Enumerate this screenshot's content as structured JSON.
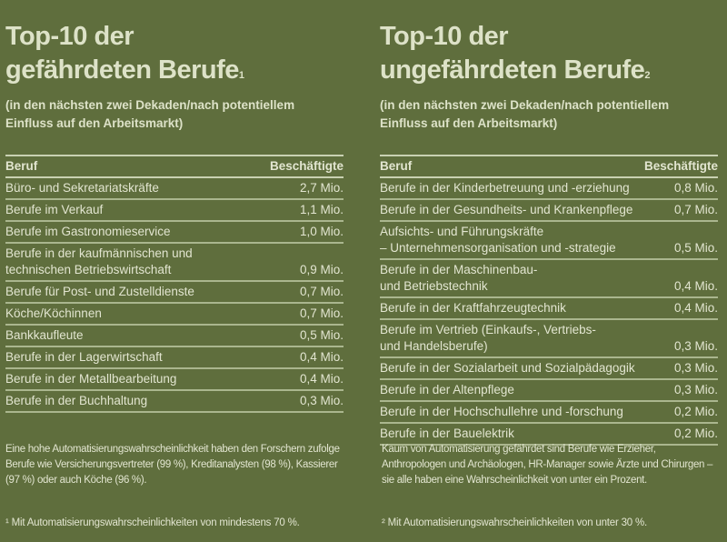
{
  "left": {
    "title_line1": "Top-10 der",
    "title_line2": "gefährdeten Berufe",
    "title_sup": "1",
    "subtitle": "(in den nächsten zwei Dekaden/nach potentiellem Einfluss auf den Arbeitsmarkt)",
    "headers": {
      "job": "Beruf",
      "count": "Beschäftigte"
    },
    "rows": [
      {
        "job": "Büro- und Sekretariatskräfte",
        "count": "2,7 Mio."
      },
      {
        "job": "Berufe im Verkauf",
        "count": "1,1 Mio."
      },
      {
        "job": "Berufe im Gastronomieservice",
        "count": "1,0 Mio."
      },
      {
        "job": "Berufe in der kaufmännischen und\ntechnischen Betriebswirtschaft",
        "count": "0,9 Mio."
      },
      {
        "job": "Berufe für Post- und Zustelldienste",
        "count": "0,7 Mio."
      },
      {
        "job": "Köche/Köchinnen",
        "count": "0,7 Mio."
      },
      {
        "job": "Bankkaufleute",
        "count": "0,5 Mio."
      },
      {
        "job": "Berufe in der Lagerwirtschaft",
        "count": "0,4 Mio."
      },
      {
        "job": "Berufe in der Metallbearbeitung",
        "count": "0,4 Mio."
      },
      {
        "job": "Berufe in der Buchhaltung",
        "count": "0,3 Mio."
      }
    ],
    "note": "Eine hohe Automatisierungswahrscheinlichkeit haben den Forschern zufolge Berufe wie Versicherungsvertreter (99 %), Kreditanalysten (98 %), Kassierer (97 %) oder auch Köche (96 %).",
    "footnote": "¹  Mit Automatisierungswahrscheinlichkeiten von mindestens 70 %."
  },
  "right": {
    "title_line1": "Top-10 der",
    "title_line2": "ungefährdeten Berufe",
    "title_sup": "2",
    "subtitle": "(in den nächsten zwei Dekaden/nach potentiellem Einfluss auf den Arbeitsmarkt)",
    "headers": {
      "job": "Beruf",
      "count": "Beschäftigte"
    },
    "rows": [
      {
        "job": "Berufe in der Kinderbetreuung und -erziehung",
        "count": "0,8 Mio."
      },
      {
        "job": "Berufe in der Gesundheits- und Krankenpflege",
        "count": "0,7 Mio."
      },
      {
        "job": "Aufsichts- und Führungskräfte\n– Unternehmensorganisation und -strategie",
        "count": "0,5 Mio."
      },
      {
        "job": "Berufe in der Maschinenbau-\nund Betriebstechnik",
        "count": "0,4 Mio."
      },
      {
        "job": "Berufe in der Kraftfahrzeugtechnik",
        "count": "0,4 Mio."
      },
      {
        "job": "Berufe im Vertrieb  (Einkaufs-, Vertriebs-\nund Handelsberufe)",
        "count": "0,3 Mio."
      },
      {
        "job": "Berufe in der Sozialarbeit und Sozialpädagogik",
        "count": "0,3 Mio."
      },
      {
        "job": "Berufe in der Altenpflege",
        "count": "0,3 Mio."
      },
      {
        "job": "Berufe in der Hochschullehre und -forschung",
        "count": "0,2 Mio."
      },
      {
        "job": "Berufe in der Bauelektrik",
        "count": "0,2 Mio."
      }
    ],
    "note": "Kaum von Automatisierung gefährdet sind Berufe wie Erzieher, Anthropologen und Archäologen, HR-Manager sowie Ärzte und Chirurgen – sie alle haben eine Wahrscheinlichkeit von unter ein Prozent.",
    "footnote": "²  Mit Automatisierungswahrscheinlichkeiten von unter 30 %."
  }
}
